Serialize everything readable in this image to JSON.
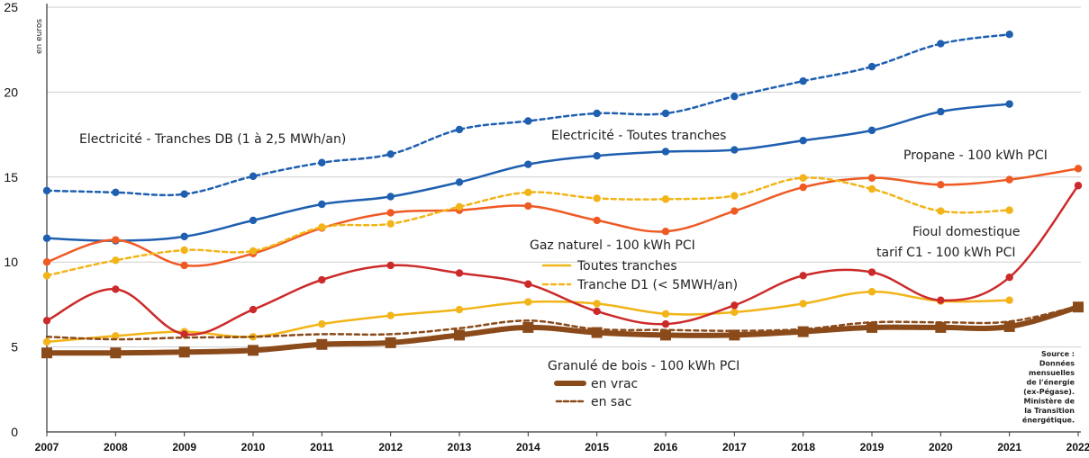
{
  "chart_data": {
    "type": "line",
    "ylabel": "en euros",
    "ylim": [
      0,
      25
    ],
    "yticks": [
      "0",
      "5",
      "10",
      "15",
      "20",
      "25"
    ],
    "x": [
      "2007",
      "2008",
      "2009",
      "2010",
      "2011",
      "2012",
      "2013",
      "2014",
      "2015",
      "2016",
      "2017",
      "2018",
      "2019",
      "2020",
      "2021",
      "2022"
    ],
    "grid": "horizontal",
    "series": [
      {
        "id": "elec_db",
        "name": "Electricité - Tranches DB (1 à 2,5 MWh/an)",
        "color": "#1f5fb0",
        "style": "dashed",
        "width": 2.5,
        "markers": true,
        "values": [
          14.2,
          14.1,
          14.0,
          15.05,
          15.85,
          16.35,
          17.8,
          18.3,
          18.75,
          18.75,
          19.75,
          20.65,
          21.5,
          22.85,
          23.4,
          null
        ]
      },
      {
        "id": "elec_all",
        "name": "Electricité - Toutes tranches",
        "color": "#1f5fb0",
        "style": "solid",
        "width": 2.5,
        "markers": true,
        "values": [
          11.4,
          11.25,
          11.5,
          12.45,
          13.4,
          13.85,
          14.7,
          15.75,
          16.25,
          16.5,
          16.6,
          17.15,
          17.75,
          18.85,
          19.3,
          null
        ]
      },
      {
        "id": "propane",
        "name": "Propane - 100 kWh PCI",
        "color": "#ef5a24",
        "style": "solid",
        "width": 2.5,
        "markers": true,
        "values": [
          10.0,
          11.3,
          9.8,
          10.5,
          12.0,
          12.9,
          13.05,
          13.3,
          12.45,
          11.8,
          13.0,
          14.4,
          14.95,
          14.55,
          14.85,
          15.5
        ]
      },
      {
        "id": "gaz_d1",
        "name": "Tranche D1 (< 5MWH/an)",
        "color": "#f2b418",
        "style": "dashed",
        "width": 2.5,
        "markers": true,
        "values": [
          9.2,
          10.1,
          10.7,
          10.65,
          12.05,
          12.25,
          13.25,
          14.1,
          13.75,
          13.7,
          13.9,
          14.95,
          14.3,
          13.0,
          13.05,
          null
        ]
      },
      {
        "id": "gaz_all",
        "name": "Toutes tranches",
        "color": "#f2b418",
        "style": "solid",
        "width": 2.5,
        "markers": true,
        "values": [
          5.3,
          5.65,
          5.9,
          5.6,
          6.35,
          6.85,
          7.2,
          7.65,
          7.55,
          6.95,
          7.05,
          7.55,
          8.25,
          7.7,
          7.75,
          null
        ]
      },
      {
        "id": "fioul",
        "name": "Fioul domestique tarif C1 - 100 kWh PCI",
        "color": "#cc2a2a",
        "style": "solid",
        "width": 2.5,
        "markers": true,
        "values": [
          6.55,
          8.4,
          5.75,
          7.2,
          8.95,
          9.8,
          9.35,
          8.7,
          7.1,
          6.35,
          7.45,
          9.2,
          9.4,
          7.75,
          9.1,
          14.5
        ]
      },
      {
        "id": "bois_sac",
        "name": "en sac",
        "color": "#8b4a1a",
        "style": "dashed",
        "width": 2.5,
        "markers": false,
        "values": [
          5.6,
          5.45,
          5.55,
          5.6,
          5.75,
          5.75,
          6.1,
          6.55,
          6.05,
          6.0,
          5.95,
          6.05,
          6.45,
          6.45,
          6.5,
          7.4
        ]
      },
      {
        "id": "bois_vrac",
        "name": "en vrac",
        "color": "#8b4a1a",
        "style": "solid",
        "width": 6,
        "markers": "square",
        "values": [
          4.65,
          4.65,
          4.7,
          4.8,
          5.15,
          5.25,
          5.7,
          6.15,
          5.85,
          5.7,
          5.7,
          5.9,
          6.15,
          6.15,
          6.2,
          7.35
        ]
      }
    ],
    "annotations": [
      {
        "id": "ann_elec_db",
        "text": "Electricité - Tranches DB (1 à 2,5 MWh/an)"
      },
      {
        "id": "ann_elec_all",
        "text": "Electricité - Toutes tranches"
      },
      {
        "id": "ann_propane",
        "text": "Propane - 100 kWh PCI"
      },
      {
        "id": "ann_fioul_1",
        "text": "Fioul domestique"
      },
      {
        "id": "ann_fioul_2",
        "text": "tarif C1 - 100 kWh PCI"
      },
      {
        "id": "ann_gaz",
        "text": "Gaz naturel - 100 kWh PCI"
      },
      {
        "id": "ann_gaz_all",
        "text": "Toutes tranches"
      },
      {
        "id": "ann_gaz_d1",
        "text": "Tranche D1 (< 5MWH/an)"
      },
      {
        "id": "ann_bois",
        "text": "Granulé de bois - 100 kWh PCI"
      },
      {
        "id": "ann_bois_vrac",
        "text": "en vrac"
      },
      {
        "id": "ann_bois_sac",
        "text": "en sac"
      }
    ],
    "source_lines": [
      "Source :",
      "Données",
      "mensuelles",
      "de l'énergie",
      "(ex-Pégase).",
      "Ministère de",
      "la Transition",
      "énergétique."
    ]
  }
}
